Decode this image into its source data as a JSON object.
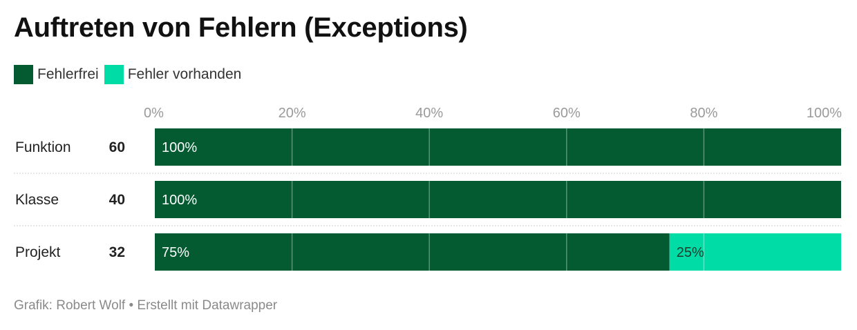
{
  "title": "Auftreten von Fehlern (Exceptions)",
  "legend": [
    {
      "label": "Fehlerfrei",
      "color": "#045b31"
    },
    {
      "label": "Fehler vorhanden",
      "color": "#00dca6"
    }
  ],
  "footer": "Grafik: Robert Wolf • Erstellt mit Datawrapper",
  "chart_data": {
    "type": "bar",
    "orientation": "horizontal",
    "stacked": true,
    "categories": [
      "Funktion",
      "Klasse",
      "Projekt"
    ],
    "counts": [
      "60",
      "40",
      "32"
    ],
    "series": [
      {
        "name": "Fehlerfrei",
        "values": [
          100,
          100,
          75
        ],
        "labels": [
          "100%",
          "100%",
          "75%"
        ],
        "color": "#045b31"
      },
      {
        "name": "Fehler vorhanden",
        "values": [
          0,
          0,
          25
        ],
        "labels": [
          "",
          "",
          "25%"
        ],
        "color": "#00dca6"
      }
    ],
    "xticks": [
      0,
      20,
      40,
      60,
      80,
      100
    ],
    "xtick_labels": [
      "0%",
      "20%",
      "40%",
      "60%",
      "80%",
      "100%"
    ],
    "xlim": [
      0,
      100
    ],
    "grid": true,
    "legend_position": "top-left"
  }
}
